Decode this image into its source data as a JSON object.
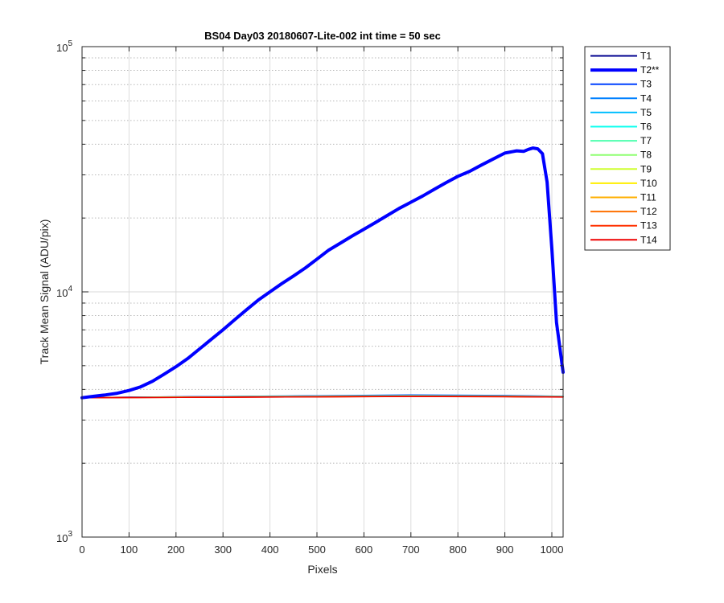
{
  "chart_data": {
    "type": "line",
    "title": "BS04 Day03 20180607-Lite-002 int time = 50 sec",
    "xlabel": "Pixels",
    "ylabel": "Track Mean Signal (ADU/pix)",
    "xlim": [
      0,
      1024
    ],
    "ylim": [
      1000,
      100000
    ],
    "yscale": "log",
    "grid": true,
    "legend_position": "outside-top-right",
    "xticks": [
      "0",
      "100",
      "200",
      "300",
      "400",
      "500",
      "600",
      "700",
      "800",
      "900",
      "1000"
    ],
    "ytick_labels": [
      {
        "base": "10",
        "exp": "3"
      },
      {
        "base": "10",
        "exp": "4"
      },
      {
        "base": "10",
        "exp": "5"
      }
    ],
    "series": [
      {
        "name": "T1",
        "color": "#00008F",
        "width": 1.5,
        "x": [
          0,
          100,
          300,
          500,
          700,
          900,
          1024
        ],
        "y": [
          3700,
          3720,
          3740,
          3760,
          3780,
          3760,
          3740
        ]
      },
      {
        "name": "T2**",
        "color": "#0000FF",
        "width": 4,
        "x": [
          0,
          25,
          50,
          75,
          100,
          125,
          150,
          175,
          200,
          225,
          250,
          275,
          300,
          325,
          350,
          375,
          400,
          425,
          450,
          475,
          500,
          525,
          550,
          575,
          600,
          625,
          650,
          675,
          700,
          725,
          750,
          775,
          800,
          825,
          850,
          875,
          900,
          925,
          940,
          950,
          960,
          970,
          980,
          990,
          1000,
          1010,
          1024
        ],
        "y": [
          3700,
          3750,
          3800,
          3860,
          3960,
          4100,
          4320,
          4620,
          4950,
          5350,
          5850,
          6400,
          7000,
          7700,
          8450,
          9250,
          10000,
          10800,
          11600,
          12500,
          13600,
          14800,
          15800,
          16900,
          18000,
          19200,
          20500,
          21900,
          23200,
          24600,
          26200,
          27900,
          29600,
          31000,
          32900,
          34800,
          36800,
          37600,
          37400,
          38100,
          38600,
          38300,
          36600,
          28000,
          15000,
          7500,
          4700
        ]
      },
      {
        "name": "T3",
        "color": "#0040FF",
        "width": 1.5,
        "x": [
          0,
          100,
          300,
          500,
          700,
          900,
          1024
        ],
        "y": [
          3700,
          3720,
          3745,
          3770,
          3800,
          3780,
          3750
        ]
      },
      {
        "name": "T4",
        "color": "#0080FF",
        "width": 1.5,
        "x": [
          0,
          100,
          300,
          500,
          700,
          900,
          1024
        ],
        "y": [
          3700,
          3715,
          3740,
          3760,
          3780,
          3765,
          3745
        ]
      },
      {
        "name": "T5",
        "color": "#00BFFF",
        "width": 1.5,
        "x": [
          0,
          100,
          300,
          500,
          700,
          900,
          1024
        ],
        "y": [
          3700,
          3715,
          3735,
          3755,
          3775,
          3760,
          3740
        ]
      },
      {
        "name": "T6",
        "color": "#10FFEF",
        "width": 1.5,
        "x": [
          0,
          100,
          300,
          500,
          700,
          900,
          1024
        ],
        "y": [
          3700,
          3712,
          3730,
          3750,
          3770,
          3755,
          3738
        ]
      },
      {
        "name": "T7",
        "color": "#50FFAF",
        "width": 1.5,
        "x": [
          0,
          100,
          300,
          500,
          700,
          900,
          1024
        ],
        "y": [
          3700,
          3712,
          3730,
          3748,
          3765,
          3752,
          3735
        ]
      },
      {
        "name": "T8",
        "color": "#8FFF70",
        "width": 1.5,
        "x": [
          0,
          100,
          300,
          500,
          700,
          900,
          1024
        ],
        "y": [
          3700,
          3710,
          3728,
          3745,
          3760,
          3750,
          3733
        ]
      },
      {
        "name": "T9",
        "color": "#CFFF30",
        "width": 1.5,
        "x": [
          0,
          100,
          300,
          500,
          700,
          900,
          1024
        ],
        "y": [
          3700,
          3710,
          3726,
          3742,
          3758,
          3748,
          3732
        ]
      },
      {
        "name": "T10",
        "color": "#FFEF00",
        "width": 1.5,
        "x": [
          0,
          100,
          300,
          500,
          700,
          900,
          1024
        ],
        "y": [
          3700,
          3708,
          3724,
          3740,
          3755,
          3745,
          3730
        ]
      },
      {
        "name": "T11",
        "color": "#FFAF00",
        "width": 1.5,
        "x": [
          0,
          100,
          300,
          500,
          700,
          900,
          1024
        ],
        "y": [
          3700,
          3708,
          3722,
          3738,
          3752,
          3742,
          3728
        ]
      },
      {
        "name": "T12",
        "color": "#FF7000",
        "width": 1.5,
        "x": [
          0,
          100,
          300,
          500,
          700,
          900,
          1024
        ],
        "y": [
          3700,
          3706,
          3720,
          3735,
          3750,
          3740,
          3726
        ]
      },
      {
        "name": "T13",
        "color": "#FF3000",
        "width": 1.5,
        "x": [
          0,
          100,
          300,
          500,
          700,
          900,
          1024
        ],
        "y": [
          3700,
          3706,
          3718,
          3732,
          3748,
          3738,
          3725
        ]
      },
      {
        "name": "T14",
        "color": "#EF0000",
        "width": 1.5,
        "x": [
          0,
          100,
          300,
          500,
          700,
          900,
          1024
        ],
        "y": [
          3700,
          3705,
          3716,
          3730,
          3745,
          3735,
          3723
        ]
      }
    ]
  }
}
